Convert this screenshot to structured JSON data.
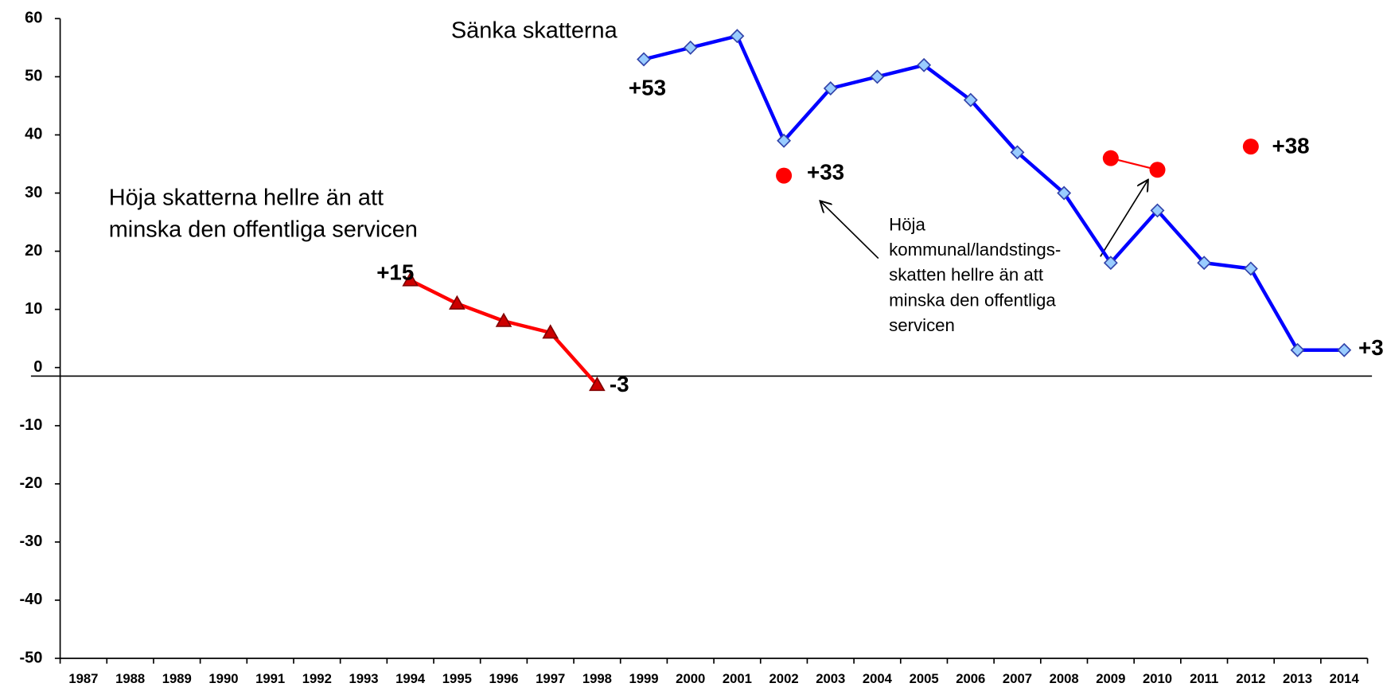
{
  "chart_data": {
    "type": "line",
    "categories": [
      "1987",
      "1988",
      "1989",
      "1990",
      "1991",
      "1992",
      "1993",
      "1994",
      "1995",
      "1996",
      "1997",
      "1998",
      "1999",
      "2000",
      "2001",
      "2002",
      "2003",
      "2004",
      "2005",
      "2006",
      "2007",
      "2008",
      "2009",
      "2010",
      "2011",
      "2012",
      "2013",
      "2014"
    ],
    "ylim": [
      -50,
      60
    ],
    "yticks": [
      -50,
      -40,
      -30,
      -20,
      -10,
      0,
      10,
      20,
      30,
      40,
      50,
      60
    ],
    "series": [
      {
        "color": "#ff0000",
        "marker": "triangle",
        "values": [
          null,
          null,
          null,
          null,
          null,
          null,
          null,
          15,
          11,
          8,
          6,
          -3,
          null,
          null,
          null,
          null,
          null,
          null,
          null,
          null,
          null,
          null,
          null,
          null,
          null,
          null,
          null,
          null
        ],
        "value_labels": [
          null,
          null,
          null,
          null,
          null,
          null,
          null,
          "+15",
          null,
          null,
          null,
          "-3",
          null,
          null,
          null,
          null,
          null,
          null,
          null,
          null,
          null,
          null,
          null,
          null,
          null,
          null,
          null,
          null
        ]
      },
      {
        "color": "#0000ff",
        "marker": "diamond",
        "values": [
          null,
          null,
          null,
          null,
          null,
          null,
          null,
          null,
          null,
          null,
          null,
          null,
          53,
          55,
          57,
          39,
          48,
          50,
          52,
          46,
          37,
          30,
          18,
          27,
          18,
          17,
          3,
          3
        ],
        "value_labels": [
          null,
          null,
          null,
          null,
          null,
          null,
          null,
          null,
          null,
          null,
          null,
          null,
          "+53",
          null,
          null,
          null,
          null,
          null,
          null,
          null,
          null,
          null,
          null,
          null,
          null,
          null,
          null,
          "+3"
        ]
      },
      {
        "color": "#ff0000",
        "marker": "circle",
        "values": [
          null,
          null,
          null,
          null,
          null,
          null,
          null,
          null,
          null,
          null,
          null,
          null,
          null,
          null,
          null,
          33,
          null,
          null,
          null,
          null,
          null,
          null,
          36,
          34,
          null,
          38,
          null,
          null
        ],
        "value_labels": [
          null,
          null,
          null,
          null,
          null,
          null,
          null,
          null,
          null,
          null,
          null,
          null,
          null,
          null,
          null,
          "+33",
          null,
          null,
          null,
          null,
          null,
          null,
          null,
          null,
          null,
          "+38",
          null,
          null
        ]
      }
    ],
    "annotations": [
      {
        "lines": [
          "Sänka skatterna"
        ]
      },
      {
        "lines": [
          "Höja skatterna hellre än att",
          "minska den offentliga servicen"
        ]
      },
      {
        "lines": [
          "Höja",
          "kommunal/landstings-",
          "skatten hellre än att",
          "minska den offentliga",
          "servicen"
        ]
      }
    ]
  }
}
